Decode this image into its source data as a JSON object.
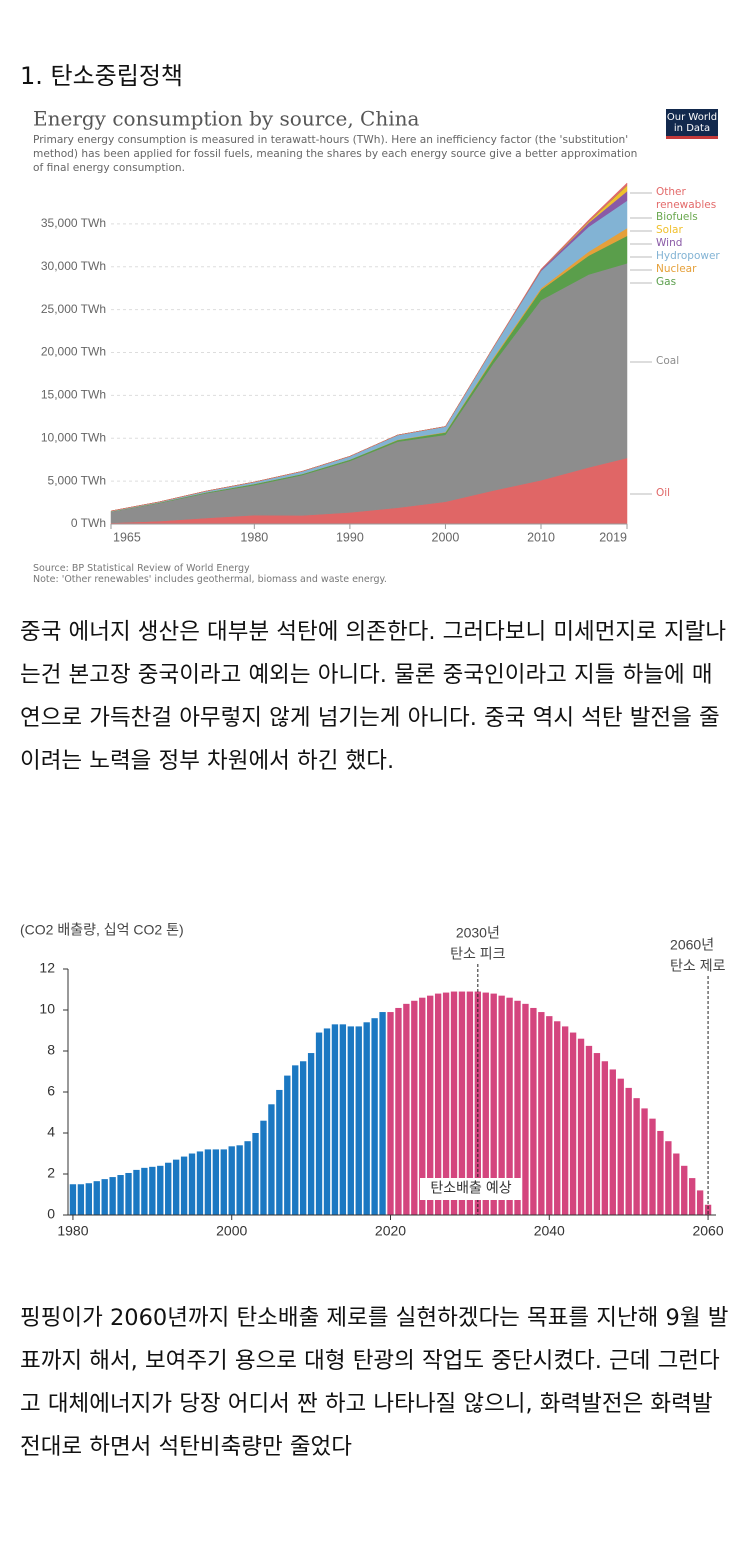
{
  "heading": "1. 탄소중립정책",
  "chart_data": [
    {
      "type": "area",
      "title": "Energy consumption by source, China",
      "subtitle": "Primary energy consumption is measured in terawatt-hours (TWh). Here an inefficiency factor (the 'substitution' method) has been applied for fossil fuels, meaning the shares by each energy source give a better approximation of final energy consumption.",
      "logo": "Our World in Data",
      "source": "Source: BP Statistical Review of World Energy",
      "note": "Note: 'Other renewables' includes geothermal, biomass and waste energy.",
      "stacked": true,
      "grid": true,
      "x": [
        1965,
        1970,
        1975,
        1980,
        1985,
        1990,
        1995,
        2000,
        2005,
        2010,
        2015,
        2019
      ],
      "xlim": [
        1965,
        2019
      ],
      "xticks": [
        1965,
        1980,
        1990,
        2000,
        2010,
        2019
      ],
      "ylim": [
        0,
        40000
      ],
      "yticks": [
        {
          "value": 0,
          "label": "0 TWh"
        },
        {
          "value": 5000,
          "label": "5,000 TWh"
        },
        {
          "value": 10000,
          "label": "10,000 TWh"
        },
        {
          "value": 15000,
          "label": "15,000 TWh"
        },
        {
          "value": 20000,
          "label": "20,000 TWh"
        },
        {
          "value": 25000,
          "label": "25,000 TWh"
        },
        {
          "value": 30000,
          "label": "30,000 TWh"
        },
        {
          "value": 35000,
          "label": "35,000 TWh"
        }
      ],
      "series": [
        {
          "name": "Oil",
          "color": "#e06666",
          "values": [
            130,
            330,
            700,
            1030,
            1000,
            1350,
            1900,
            2600,
            3900,
            5100,
            6600,
            7700
          ]
        },
        {
          "name": "Coal",
          "color": "#8d8d8d",
          "values": [
            1300,
            2100,
            2900,
            3500,
            4700,
            6000,
            7700,
            7800,
            14800,
            21000,
            22500,
            22700
          ]
        },
        {
          "name": "Gas",
          "color": "#5a9e4b",
          "values": [
            30,
            60,
            100,
            150,
            140,
            170,
            190,
            270,
            520,
            1200,
            2200,
            3200
          ]
        },
        {
          "name": "Nuclear",
          "color": "#e5a03a",
          "values": [
            0,
            0,
            0,
            0,
            0,
            0,
            40,
            50,
            150,
            200,
            470,
            900
          ]
        },
        {
          "name": "Hydropower",
          "color": "#82b3d4",
          "values": [
            60,
            80,
            150,
            220,
            300,
            380,
            550,
            650,
            1200,
            2000,
            2900,
            3200
          ]
        },
        {
          "name": "Wind",
          "color": "#8a5aa6",
          "values": [
            0,
            0,
            0,
            0,
            0,
            0,
            0,
            0,
            5,
            120,
            470,
            1100
          ]
        },
        {
          "name": "Solar",
          "color": "#f0c02c",
          "values": [
            0,
            0,
            0,
            0,
            0,
            0,
            0,
            0,
            0,
            2,
            120,
            650
          ]
        },
        {
          "name": "Biofuels",
          "color": "#6aa84f",
          "values": [
            0,
            0,
            0,
            0,
            0,
            0,
            0,
            0,
            5,
            20,
            30,
            40
          ]
        },
        {
          "name": "Other renewables",
          "color": "#e36a6a",
          "values": [
            0,
            0,
            0,
            0,
            0,
            0,
            0,
            0,
            30,
            80,
            170,
            280
          ]
        }
      ]
    },
    {
      "type": "bar",
      "ylabel": "(CO2 배출량, 십억 CO2 톤)",
      "x": [
        1980,
        1981,
        1982,
        1983,
        1984,
        1985,
        1986,
        1987,
        1988,
        1989,
        1990,
        1991,
        1992,
        1993,
        1994,
        1995,
        1996,
        1997,
        1998,
        1999,
        2000,
        2001,
        2002,
        2003,
        2004,
        2005,
        2006,
        2007,
        2008,
        2009,
        2010,
        2011,
        2012,
        2013,
        2014,
        2015,
        2016,
        2017,
        2018,
        2019,
        2020,
        2021,
        2022,
        2023,
        2024,
        2025,
        2026,
        2027,
        2028,
        2029,
        2030,
        2031,
        2032,
        2033,
        2034,
        2035,
        2036,
        2037,
        2038,
        2039,
        2040,
        2041,
        2042,
        2043,
        2044,
        2045,
        2046,
        2047,
        2048,
        2049,
        2050,
        2051,
        2052,
        2053,
        2054,
        2055,
        2056,
        2057,
        2058,
        2059,
        2060
      ],
      "xlim": [
        1979,
        2061
      ],
      "xticks": [
        1980,
        2000,
        2020,
        2040,
        2060
      ],
      "ylim": [
        0,
        12
      ],
      "yticks": [
        0,
        2,
        4,
        6,
        8,
        10,
        12
      ],
      "series": [
        {
          "color": "#1b78c2",
          "values": [
            1.5,
            1.5,
            1.55,
            1.65,
            1.75,
            1.85,
            1.95,
            2.05,
            2.2,
            2.3,
            2.35,
            2.4,
            2.55,
            2.7,
            2.85,
            3.0,
            3.1,
            3.2,
            3.2,
            3.2,
            3.35,
            3.4,
            3.6,
            4.0,
            4.6,
            5.4,
            6.1,
            6.8,
            7.3,
            7.5,
            7.9,
            8.9,
            9.1,
            9.3,
            9.3,
            9.2,
            9.2,
            9.4,
            9.6,
            9.9,
            null,
            null,
            null,
            null,
            null,
            null,
            null,
            null,
            null,
            null,
            null,
            null,
            null,
            null,
            null,
            null,
            null,
            null,
            null,
            null,
            null,
            null,
            null,
            null,
            null,
            null,
            null,
            null,
            null,
            null,
            null,
            null,
            null,
            null,
            null,
            null,
            null,
            null,
            null,
            null,
            null
          ]
        },
        {
          "color": "#d4457e",
          "values": [
            null,
            null,
            null,
            null,
            null,
            null,
            null,
            null,
            null,
            null,
            null,
            null,
            null,
            null,
            null,
            null,
            null,
            null,
            null,
            null,
            null,
            null,
            null,
            null,
            null,
            null,
            null,
            null,
            null,
            null,
            null,
            null,
            null,
            null,
            null,
            null,
            null,
            null,
            null,
            null,
            9.9,
            10.1,
            10.3,
            10.45,
            10.6,
            10.7,
            10.8,
            10.85,
            10.9,
            10.9,
            10.9,
            10.9,
            10.85,
            10.8,
            10.7,
            10.6,
            10.45,
            10.3,
            10.1,
            9.9,
            9.7,
            9.45,
            9.2,
            8.9,
            8.6,
            8.25,
            7.9,
            7.5,
            7.1,
            6.65,
            6.2,
            5.7,
            5.2,
            4.7,
            4.1,
            3.6,
            3.0,
            2.4,
            1.8,
            1.2,
            0.5
          ]
        }
      ],
      "annotations": [
        {
          "x": 2031,
          "lines": [
            "2030년",
            "탄소 피크"
          ]
        },
        {
          "x": 2060,
          "lines": [
            "2060년",
            "탄소 제로"
          ]
        }
      ],
      "region_label": "탄소배출 예상"
    }
  ],
  "paragraphs": [
    "중국 에너지 생산은 대부분 석탄에 의존한다. 그러다보니 미세먼지로 지랄나는건 본고장 중국이라고 예외는 아니다. 물론 중국인이라고 지들 하늘에 매연으로 가득찬걸 아무렇지 않게 넘기는게 아니다. 중국 역시 석탄 발전을 줄이려는 노력을 정부 차원에서 하긴 했다.",
    "핑핑이가 2060년까지 탄소배출 제로를 실현하겠다는 목표를 지난해 9월 발표까지 해서, 보여주기 용으로 대형 탄광의 작업도 중단시켰다. 근데 그런다고 대체에너지가 당장 어디서 짠 하고 나타나질 않으니, 화력발전은 화력발전대로 하면서 석탄비축량만 줄었다"
  ]
}
